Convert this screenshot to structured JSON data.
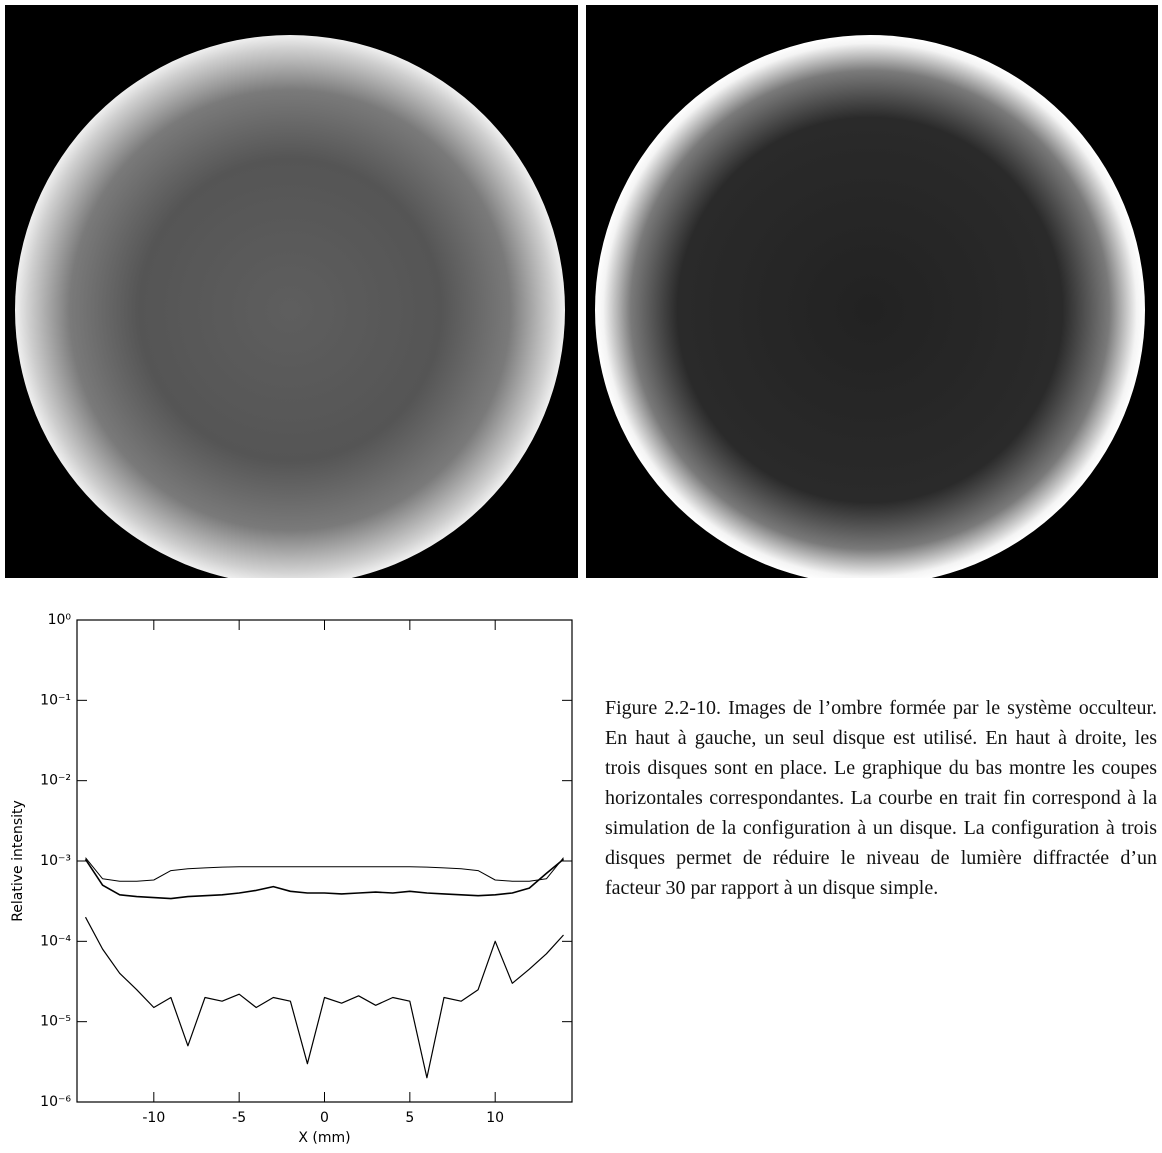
{
  "chart_data": {
    "type": "line",
    "xlabel": "X (mm)",
    "ylabel": "Relative intensity",
    "log_y": true,
    "xlim": [
      -14.5,
      14.5
    ],
    "xticks": [
      -10,
      -5,
      0,
      5,
      10
    ],
    "ylim": [
      1e-06,
      1
    ],
    "yticks": [
      {
        "value": 1e-06,
        "label": "10⁻⁶"
      },
      {
        "value": 1e-05,
        "label": "10⁻⁵"
      },
      {
        "value": 0.0001,
        "label": "10⁻⁴"
      },
      {
        "value": 0.001,
        "label": "10⁻³"
      },
      {
        "value": 0.01,
        "label": "10⁻²"
      },
      {
        "value": 0.1,
        "label": "10⁻¹"
      },
      {
        "value": 1,
        "label": "10⁰"
      }
    ],
    "x": [
      -14,
      -13,
      -12,
      -11,
      -10,
      -9,
      -8,
      -7,
      -6,
      -5,
      -4,
      -3,
      -2,
      -1,
      0,
      1,
      2,
      3,
      4,
      5,
      6,
      7,
      8,
      9,
      10,
      11,
      12,
      13,
      14
    ],
    "series": [
      {
        "color": "#000000",
        "line_width": 1,
        "values": [
          0.0011,
          0.0006,
          0.00056,
          0.00056,
          0.00058,
          0.00076,
          0.0008,
          0.00082,
          0.00084,
          0.00085,
          0.00085,
          0.00085,
          0.00085,
          0.00085,
          0.00085,
          0.00085,
          0.00085,
          0.00085,
          0.00085,
          0.00085,
          0.00084,
          0.00082,
          0.0008,
          0.00076,
          0.00058,
          0.00056,
          0.00056,
          0.0006,
          0.0011
        ]
      },
      {
        "color": "#000000",
        "line_width": 1.6,
        "values": [
          0.00105,
          0.0005,
          0.00038,
          0.00036,
          0.00035,
          0.00034,
          0.00036,
          0.00037,
          0.00038,
          0.0004,
          0.00043,
          0.00048,
          0.00042,
          0.0004,
          0.0004,
          0.00039,
          0.0004,
          0.00041,
          0.0004,
          0.00042,
          0.0004,
          0.00039,
          0.00038,
          0.00037,
          0.00038,
          0.0004,
          0.00046,
          0.0007,
          0.00105
        ]
      },
      {
        "color": "#000000",
        "line_width": 1.2,
        "values": [
          0.0002,
          8e-05,
          4e-05,
          2.5e-05,
          1.5e-05,
          2e-05,
          5e-06,
          2e-05,
          1.8e-05,
          2.2e-05,
          1.5e-05,
          2e-05,
          1.8e-05,
          3e-06,
          2e-05,
          1.7e-05,
          2.1e-05,
          1.6e-05,
          2e-05,
          1.8e-05,
          2e-06,
          2e-05,
          1.8e-05,
          2.5e-05,
          0.0001,
          3e-05,
          4.5e-05,
          7e-05,
          0.00012
        ]
      }
    ]
  },
  "caption": "Figure 2.2-10. Images de l’ombre formée par le système occulteur. En haut à gauche, un seul disque est utilisé. En haut à droite, les trois disques sont en place. Le graphique du bas montre les coupes horizontales correspondantes. La courbe en trait fin correspond à la simulation de la configuration à un disque. La configuration à trois disques permet de réduire le niveau de lumière diffractée d’un facteur 30 par rapport à un disque simple."
}
